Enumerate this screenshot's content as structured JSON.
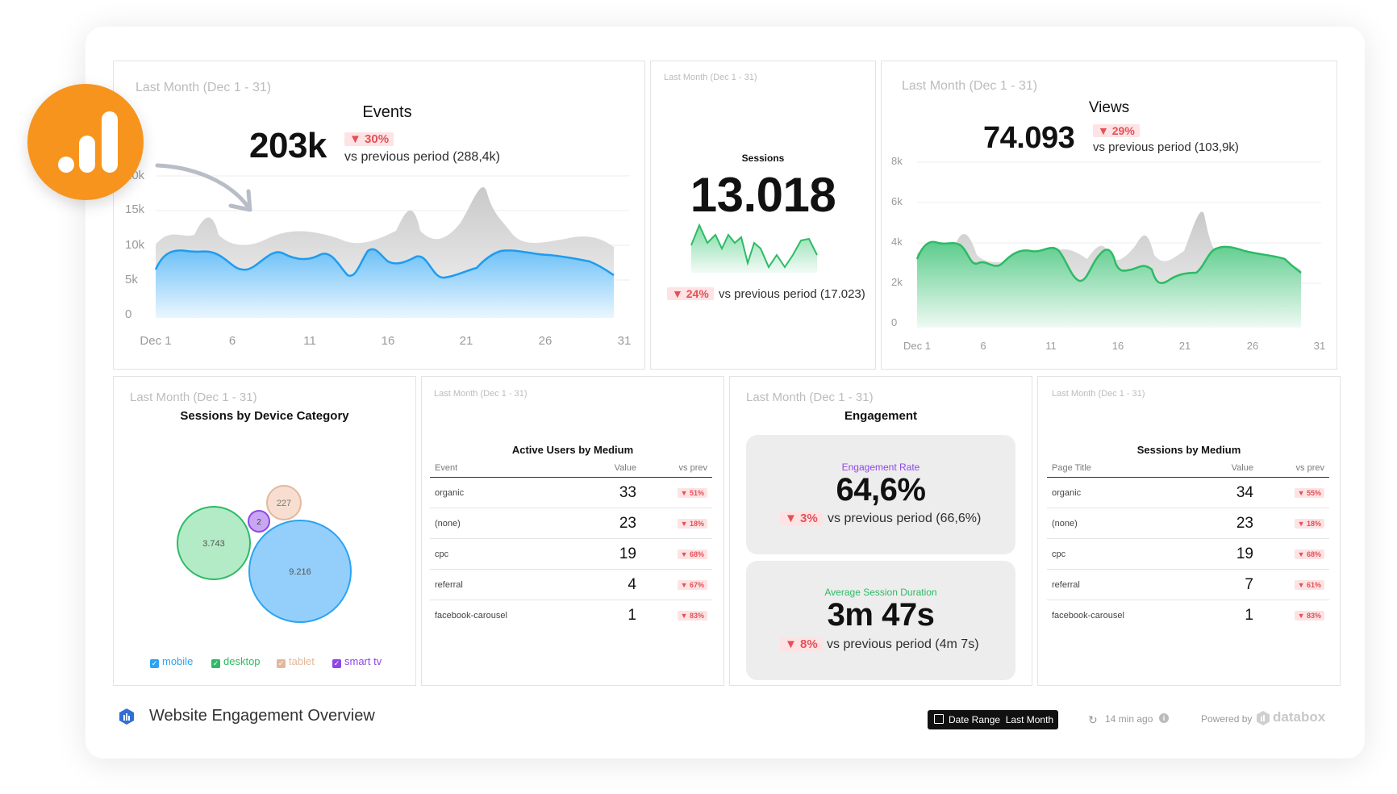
{
  "colors": {
    "accent_orange": "#f7941d",
    "blue": "#2aa3f2",
    "green": "#2dbb65",
    "red": "#e4505a",
    "purple": "#8f47e6",
    "tablet": "#e4b89c"
  },
  "events": {
    "period": "Last Month (Dec 1 - 31)",
    "title": "Events",
    "value": "203k",
    "change": "30%",
    "compare": "vs previous period (288,4k)",
    "y_ticks": [
      "20k",
      "15k",
      "10k",
      "5k",
      "0"
    ],
    "x_ticks": [
      "Dec 1",
      "6",
      "11",
      "16",
      "21",
      "26",
      "31"
    ]
  },
  "sessions": {
    "period": "Last Month (Dec 1 - 31)",
    "title": "Sessions",
    "value": "13.018",
    "change": "24%",
    "compare": "vs previous period (17.023)"
  },
  "views": {
    "period": "Last Month (Dec 1 - 31)",
    "title": "Views",
    "value": "74.093",
    "change": "29%",
    "compare": "vs previous period (103,9k)",
    "y_ticks": [
      "8k",
      "6k",
      "4k",
      "2k",
      "0"
    ],
    "x_ticks": [
      "Dec 1",
      "6",
      "11",
      "16",
      "21",
      "26",
      "31"
    ]
  },
  "device": {
    "period": "Last Month (Dec 1 - 31)",
    "title": "Sessions by Device Category",
    "bubbles": [
      {
        "label": "3.743",
        "name": "desktop"
      },
      {
        "label": "9.216",
        "name": "mobile"
      },
      {
        "label": "227",
        "name": "tablet"
      },
      {
        "label": "2",
        "name": "smart tv"
      }
    ],
    "legend": [
      "mobile",
      "desktop",
      "tablet",
      "smart tv"
    ]
  },
  "active_users": {
    "period": "Last Month (Dec 1 - 31)",
    "title": "Active Users by Medium",
    "headers": [
      "Event",
      "Value",
      "vs prev"
    ],
    "rows": [
      {
        "name": "organic",
        "value": "33",
        "change": "▼ 51%"
      },
      {
        "name": "(none)",
        "value": "23",
        "change": "▼ 18%"
      },
      {
        "name": "cpc",
        "value": "19",
        "change": "▼ 68%"
      },
      {
        "name": "referral",
        "value": "4",
        "change": "▼ 67%"
      },
      {
        "name": "facebook-carousel",
        "value": "1",
        "change": "▼ 83%"
      }
    ]
  },
  "engagement": {
    "period": "Last Month (Dec 1 - 31)",
    "title": "Engagement",
    "rate": {
      "label": "Engagement Rate",
      "value": "64,6%",
      "change": "3%",
      "compare": "vs previous period (66,6%)"
    },
    "duration": {
      "label": "Average Session Duration",
      "value": "3m 47s",
      "change": "8%",
      "compare": "vs previous period (4m 7s)"
    }
  },
  "sessions_medium": {
    "period": "Last Month (Dec 1 - 31)",
    "title": "Sessions by Medium",
    "headers": [
      "Page Title",
      "Value",
      "vs prev"
    ],
    "rows": [
      {
        "name": "organic",
        "value": "34",
        "change": "▼ 55%"
      },
      {
        "name": "(none)",
        "value": "23",
        "change": "▼ 18%"
      },
      {
        "name": "cpc",
        "value": "19",
        "change": "▼ 68%"
      },
      {
        "name": "referral",
        "value": "7",
        "change": "▼ 61%"
      },
      {
        "name": "facebook-carousel",
        "value": "1",
        "change": "▼ 83%"
      }
    ]
  },
  "footer": {
    "title": "Website Engagement Overview",
    "date_range_label": "Date Range",
    "date_range_value": "Last Month",
    "updated": "14 min ago",
    "powered_by": "Powered by",
    "brand": "databox"
  }
}
